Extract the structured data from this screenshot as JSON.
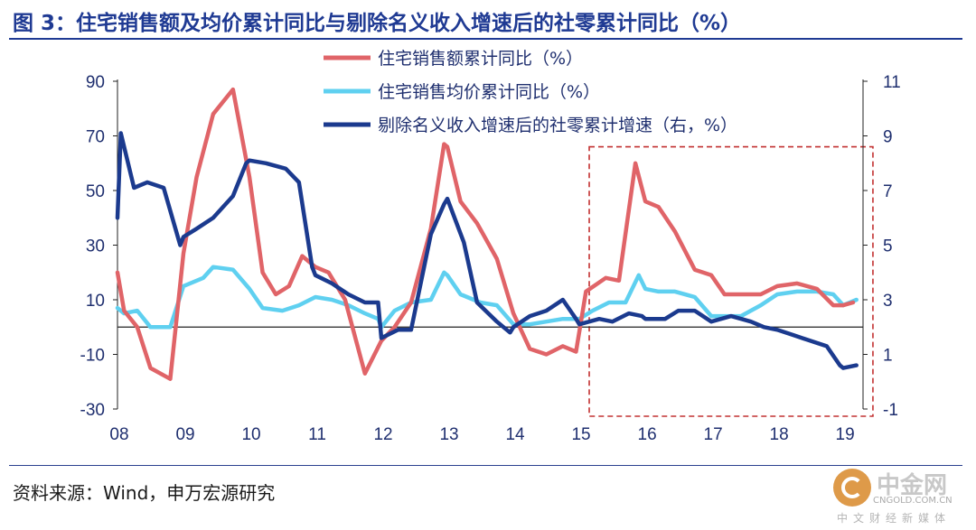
{
  "title": "图 3：住宅销售额及均价累计同比与剔除名义收入增速后的社零累计同比（%）",
  "source": "资料来源：Wind，申万宏源研究",
  "watermark": {
    "name": "中金网",
    "domain": "CNGOLD.COM.CN",
    "tagline": "中文财经新媒体"
  },
  "colors": {
    "sales": "#e06468",
    "price": "#5fd0f0",
    "retail": "#1b3a8e",
    "title": "#1f3a93",
    "box": "#c23030"
  },
  "chart_data": {
    "type": "line",
    "x_ticks": [
      "08",
      "09",
      "10",
      "11",
      "12",
      "13",
      "14",
      "15",
      "16",
      "17",
      "18",
      "19"
    ],
    "x_range": [
      8.0,
      19.3
    ],
    "y_left": {
      "min": -30,
      "max": 90,
      "ticks": [
        "90",
        "70",
        "50",
        "30",
        "10",
        "-10",
        "-30"
      ]
    },
    "y_right": {
      "min": -1,
      "max": 11,
      "ticks": [
        "11",
        "9",
        "7",
        "5",
        "3",
        "1",
        "-1"
      ]
    },
    "highlight_box": {
      "x_from": 15.15,
      "x_to": 19.45,
      "y_from": -30,
      "y_to": 66,
      "style": "dashed"
    },
    "series": [
      {
        "name": "住宅销售额累计同比（%）",
        "axis": "left",
        "x": [
          8.0,
          8.1,
          8.3,
          8.5,
          8.8,
          9.0,
          9.2,
          9.45,
          9.75,
          10.0,
          10.2,
          10.4,
          10.6,
          10.8,
          11.0,
          11.2,
          11.45,
          11.75,
          12.0,
          12.2,
          12.45,
          12.75,
          12.95,
          13.0,
          13.2,
          13.45,
          13.75,
          14.0,
          14.25,
          14.5,
          14.75,
          14.95,
          15.1,
          15.4,
          15.6,
          15.85,
          16.0,
          16.2,
          16.45,
          16.75,
          17.0,
          17.2,
          17.45,
          17.75,
          18.0,
          18.3,
          18.6,
          18.85,
          19.0,
          19.15
        ],
        "values": [
          20,
          6,
          0,
          -15,
          -19,
          27,
          55,
          78,
          87,
          55,
          20,
          12,
          15,
          26,
          22,
          20,
          10,
          -17,
          -5,
          0,
          9,
          36,
          67,
          66,
          46,
          38,
          25,
          5,
          -8,
          -10,
          -7,
          -9,
          13,
          18,
          17,
          60,
          46,
          44,
          35,
          21,
          19,
          12,
          12,
          12,
          15,
          16,
          14,
          8,
          8,
          9
        ],
        "color_key": "sales"
      },
      {
        "name": "住宅销售均价累计同比（%）",
        "axis": "left",
        "x": [
          8.0,
          8.1,
          8.3,
          8.5,
          8.8,
          9.0,
          9.3,
          9.45,
          9.75,
          10.0,
          10.2,
          10.5,
          10.75,
          11.0,
          11.25,
          11.5,
          11.75,
          11.95,
          12.0,
          12.2,
          12.45,
          12.75,
          12.95,
          13.0,
          13.2,
          13.5,
          13.75,
          14.0,
          14.25,
          14.5,
          14.75,
          15.0,
          15.2,
          15.45,
          15.7,
          15.9,
          16.0,
          16.2,
          16.45,
          16.75,
          17.0,
          17.2,
          17.45,
          17.75,
          18.0,
          18.3,
          18.6,
          18.85,
          19.0,
          19.2
        ],
        "values": [
          7,
          5,
          6,
          0,
          0,
          15,
          18,
          22,
          21,
          14,
          7,
          6,
          8,
          11,
          10,
          8,
          5,
          3,
          0,
          6,
          9,
          10,
          20,
          19,
          12,
          9,
          8,
          1,
          1,
          2,
          3,
          3,
          6,
          9,
          9,
          19,
          14,
          13,
          13,
          11,
          4,
          4,
          4,
          8,
          12,
          13,
          13,
          12,
          8,
          10
        ],
        "color_key": "price"
      },
      {
        "name": "剔除名义收入增速后的社零累计增速（右，%）",
        "axis": "right",
        "x": [
          8.0,
          8.05,
          8.25,
          8.45,
          8.7,
          8.95,
          9.0,
          9.2,
          9.45,
          9.75,
          9.95,
          10.0,
          10.25,
          10.55,
          10.75,
          10.95,
          11.0,
          11.25,
          11.5,
          11.75,
          11.95,
          12.0,
          12.25,
          12.45,
          12.75,
          12.95,
          13.0,
          13.25,
          13.45,
          13.75,
          13.95,
          14.0,
          14.25,
          14.5,
          14.75,
          14.95,
          15.0,
          15.3,
          15.5,
          15.75,
          15.95,
          16.0,
          16.3,
          16.5,
          16.75,
          17.0,
          17.3,
          17.6,
          17.8,
          18.0,
          18.25,
          18.5,
          18.75,
          18.95,
          19.0,
          19.2
        ],
        "values": [
          6.0,
          9.1,
          7.1,
          7.3,
          7.1,
          5.0,
          5.3,
          5.6,
          6.0,
          6.8,
          8.0,
          8.1,
          8.0,
          7.8,
          7.3,
          4.2,
          3.9,
          3.6,
          3.2,
          2.9,
          2.9,
          1.6,
          1.9,
          1.9,
          5.4,
          6.5,
          6.7,
          5.1,
          2.9,
          2.2,
          1.8,
          2.0,
          2.4,
          2.6,
          3.0,
          2.3,
          2.1,
          2.3,
          2.2,
          2.5,
          2.4,
          2.3,
          2.3,
          2.6,
          2.6,
          2.2,
          2.4,
          2.2,
          2.0,
          1.9,
          1.7,
          1.5,
          1.3,
          0.6,
          0.5,
          0.6
        ],
        "color_key": "retail"
      }
    ]
  }
}
